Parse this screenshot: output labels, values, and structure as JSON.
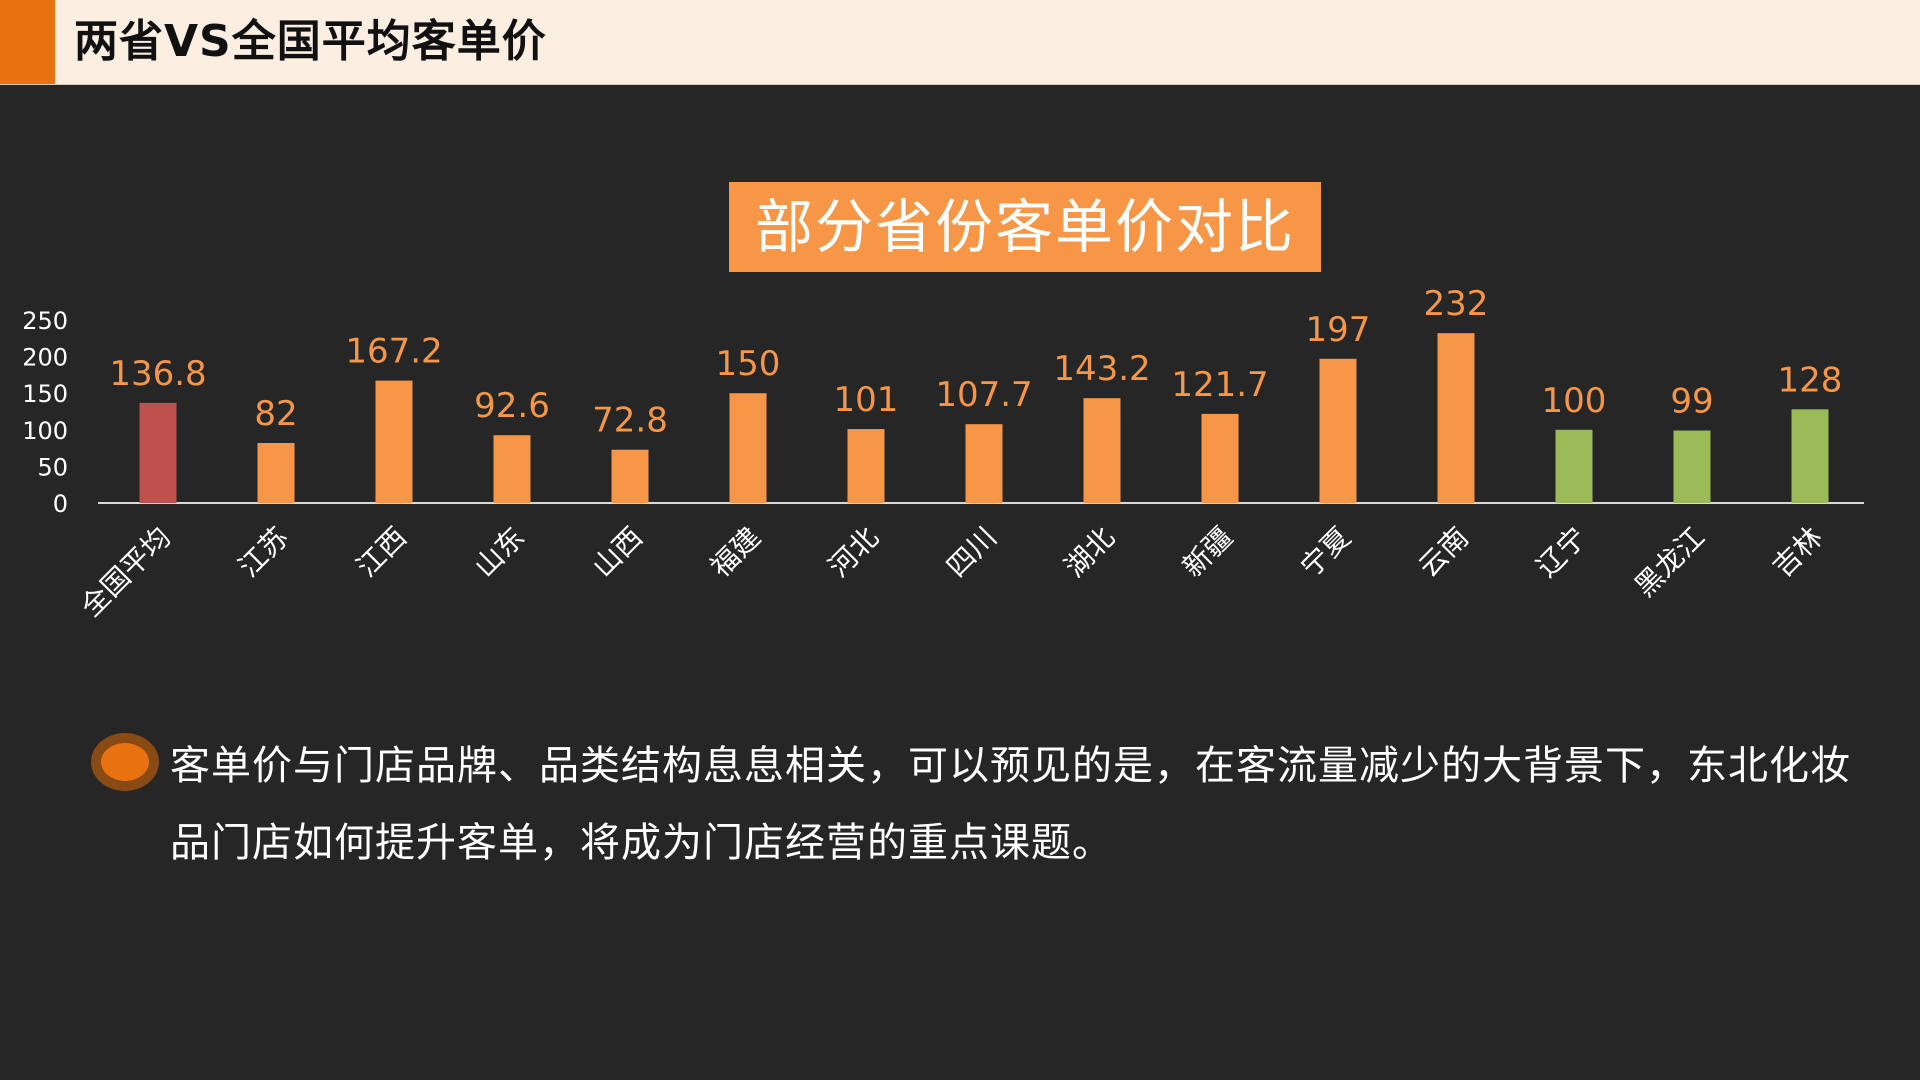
{
  "header": {
    "title": "两省VS全国平均客单价"
  },
  "chart_data": {
    "type": "bar",
    "title": "部分省份客单价对比",
    "categories": [
      "全国平均",
      "江苏",
      "江西",
      "山东",
      "山西",
      "福建",
      "河北",
      "四川",
      "湖北",
      "新疆",
      "宁夏",
      "云南",
      "辽宁",
      "黑龙江",
      "吉林"
    ],
    "values": [
      136.8,
      82,
      167.2,
      92.6,
      72.8,
      150,
      101,
      107.7,
      143.2,
      121.7,
      197,
      232,
      100,
      99,
      128
    ],
    "value_labels": [
      "136.8",
      "82",
      "167.2",
      "92.6",
      "72.8",
      "150",
      "101",
      "107.7",
      "143.2",
      "121.7",
      "197",
      "232",
      "100",
      "99",
      "128"
    ],
    "bar_colors": [
      "#c0504d",
      "#f79646",
      "#f79646",
      "#f79646",
      "#f79646",
      "#f79646",
      "#f79646",
      "#f79646",
      "#f79646",
      "#f79646",
      "#f79646",
      "#f79646",
      "#9bbb59",
      "#9bbb59",
      "#9bbb59"
    ],
    "yticks": [
      "0",
      "50",
      "100",
      "150",
      "200",
      "250"
    ],
    "ylim": [
      0,
      250
    ],
    "label_color": "#f79646",
    "grid": false
  },
  "body": {
    "text": "客单价与门店品牌、品类结构息息相关，可以预见的是，在客流量减少的大背景下，东北化妆品门店如何提升客单，将成为门店经营的重点课题。"
  },
  "colors": {
    "accent": "#e8720f",
    "background": "#262626"
  }
}
